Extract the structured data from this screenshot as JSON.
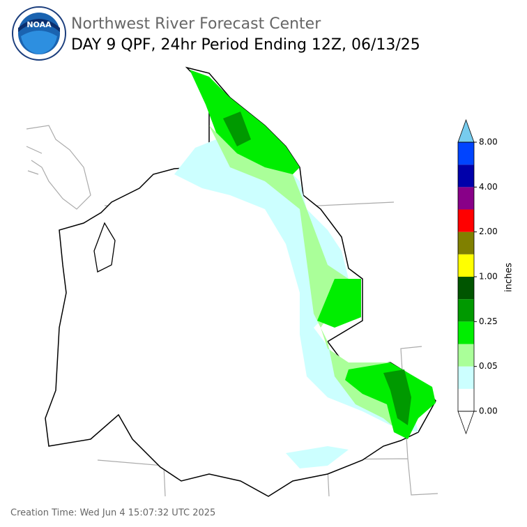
{
  "header": {
    "logo": "NOAA",
    "title": "Northwest River Forecast Center",
    "subtitle": "DAY 9 QPF, 24hr Period Ending 12Z, 06/13/25"
  },
  "colorbar": {
    "label": "inches",
    "under_color": "#ffffff",
    "over_color": "#77ccee",
    "colors": [
      "#ffffff",
      "#ccffff",
      "#aaff99",
      "#00ee00",
      "#009900",
      "#005500",
      "#ffff00",
      "#808000",
      "#ff0000",
      "#880088",
      "#0000aa",
      "#0044ff"
    ],
    "ticks": [
      {
        "value": 0,
        "label": "0.00"
      },
      {
        "value": 0.05,
        "label": "0.05"
      },
      {
        "value": 0.25,
        "label": "0.25"
      },
      {
        "value": 1,
        "label": "1.00"
      },
      {
        "value": 2,
        "label": "2.00"
      },
      {
        "value": 4,
        "label": "4.00"
      },
      {
        "value": 8,
        "label": "8.00"
      }
    ]
  },
  "footer": {
    "creation_time": "Creation Time: Wed Jun 4 15:07:32 UTC 2025"
  }
}
